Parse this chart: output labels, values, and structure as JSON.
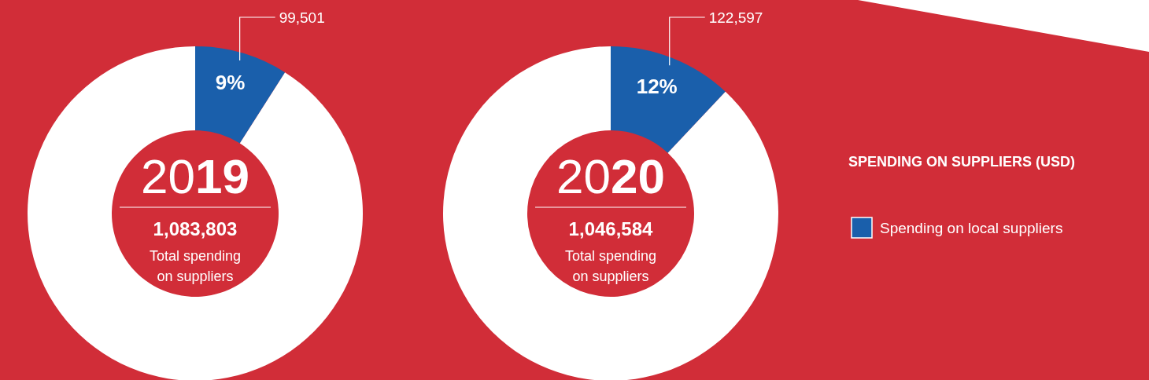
{
  "chart_data": [
    {
      "type": "donut",
      "title": "2019",
      "categories": [
        null,
        null
      ],
      "values": [
        9,
        91
      ],
      "colors": [
        "#1a5fab",
        "#ffffff"
      ],
      "value_labels": [
        "9%",
        null
      ],
      "annotations": [
        "99,501",
        "1,083,803",
        "Total spending on suppliers"
      ]
    },
    {
      "type": "donut",
      "title": "2020",
      "categories": [
        "Spending on local suppliers",
        null
      ],
      "values": [
        12,
        88
      ],
      "colors": [
        "#1a5fab",
        "#ffffff"
      ],
      "value_labels": [
        "12%",
        null
      ],
      "annotations": [
        "122,597",
        "1,046,584",
        "Total spending on suppliers"
      ],
      "legend": "right",
      "legend_title": "SPENDING ON SUPPLIERS (USD)"
    }
  ]
}
